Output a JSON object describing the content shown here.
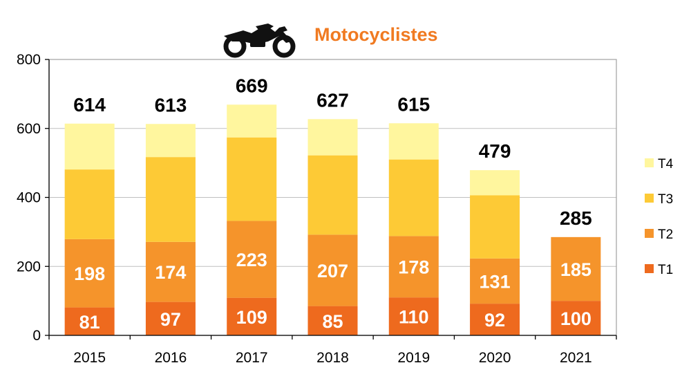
{
  "colors": {
    "title": "#F07A21",
    "T1": "#EE6A1E",
    "T2": "#F5942B",
    "T3": "#FDCA36",
    "T4": "#FFF69E",
    "grid": "#BFBFBF",
    "frame": "#A0A0A0",
    "icon": "#111111"
  },
  "icon": "motorcycle-icon",
  "chart_data": {
    "type": "bar",
    "stacked": true,
    "title": "Motocyclistes",
    "xlabel": "",
    "ylabel": "",
    "categories": [
      "2015",
      "2016",
      "2017",
      "2018",
      "2019",
      "2020",
      "2021"
    ],
    "ylim": [
      0,
      800
    ],
    "yticks": [
      0,
      200,
      400,
      600,
      800
    ],
    "grid": true,
    "legend_position": "right",
    "series": [
      {
        "name": "T1",
        "values": [
          81,
          97,
          109,
          85,
          110,
          92,
          100
        ],
        "labels": [
          "81",
          "97",
          "109",
          "85",
          "110",
          "92",
          "100"
        ]
      },
      {
        "name": "T2",
        "values": [
          198,
          174,
          223,
          207,
          178,
          131,
          185
        ],
        "labels": [
          "198",
          "174",
          "223",
          "207",
          "178",
          "131",
          "185"
        ]
      },
      {
        "name": "T3",
        "values": [
          202,
          246,
          242,
          230,
          222,
          183,
          0
        ]
      },
      {
        "name": "T4",
        "values": [
          133,
          96,
          95,
          105,
          105,
          73,
          0
        ]
      }
    ],
    "totals": [
      "614",
      "613",
      "669",
      "627",
      "615",
      "479",
      "285"
    ],
    "legend_order": [
      "T4",
      "T3",
      "T2",
      "T1"
    ]
  }
}
